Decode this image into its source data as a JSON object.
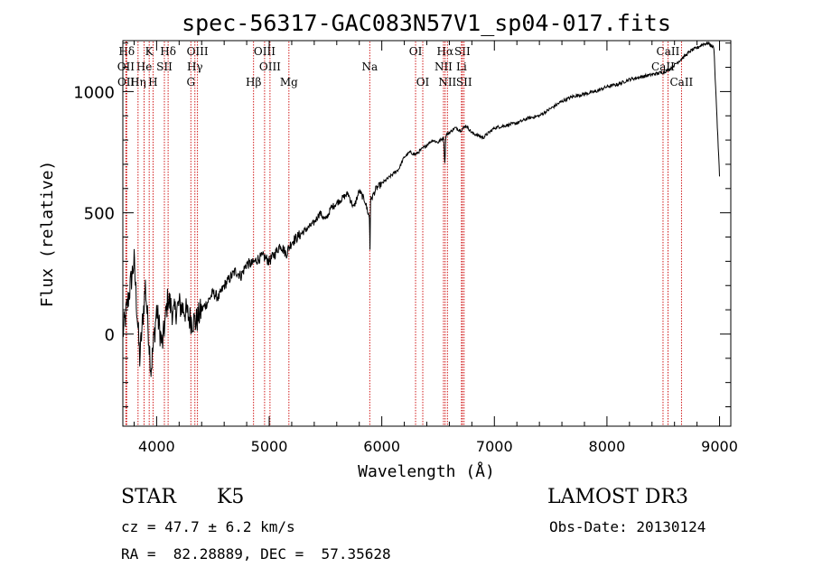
{
  "chart_data": {
    "type": "line",
    "title": "spec-56317-GAC083N57V1_sp04-017.fits",
    "xlabel": "Wavelength (Å)",
    "ylabel": "Flux (relative)",
    "xlim": [
      3700,
      9100
    ],
    "ylim": [
      -380,
      1210
    ],
    "x_ticks": [
      4000,
      5000,
      6000,
      7000,
      8000,
      9000
    ],
    "y_ticks": [
      0,
      500,
      1000
    ],
    "x_tick_labels": [
      "4000",
      "5000",
      "6000",
      "7000",
      "8000",
      "9000"
    ],
    "y_tick_labels": [
      "0",
      "500",
      "1000"
    ],
    "grid": false,
    "series": [
      {
        "name": "flux",
        "x": [
          3700,
          3750,
          3800,
          3850,
          3900,
          3950,
          4000,
          4050,
          4100,
          4150,
          4200,
          4250,
          4300,
          4350,
          4400,
          4450,
          4500,
          4550,
          4600,
          4650,
          4700,
          4750,
          4800,
          4850,
          4900,
          4950,
          5000,
          5050,
          5100,
          5150,
          5200,
          5250,
          5300,
          5350,
          5400,
          5450,
          5500,
          5550,
          5600,
          5650,
          5700,
          5750,
          5800,
          5850,
          5890,
          5895,
          5900,
          5950,
          6000,
          6050,
          6100,
          6150,
          6200,
          6250,
          6300,
          6350,
          6400,
          6450,
          6500,
          6550,
          6560,
          6565,
          6570,
          6600,
          6650,
          6700,
          6750,
          6800,
          6850,
          6900,
          6950,
          7000,
          7100,
          7200,
          7300,
          7400,
          7500,
          7600,
          7700,
          7800,
          7900,
          8000,
          8100,
          8200,
          8300,
          8400,
          8500,
          8550,
          8600,
          8650,
          8700,
          8750,
          8800,
          8850,
          8900,
          8950,
          9000
        ],
        "values": [
          0,
          150,
          300,
          -100,
          200,
          -150,
          100,
          -50,
          150,
          80,
          120,
          100,
          60,
          50,
          100,
          130,
          170,
          150,
          200,
          230,
          260,
          240,
          290,
          290,
          310,
          320,
          300,
          330,
          370,
          330,
          380,
          400,
          420,
          440,
          460,
          500,
          470,
          520,
          540,
          560,
          580,
          520,
          590,
          550,
          480,
          350,
          550,
          600,
          620,
          640,
          660,
          680,
          730,
          750,
          740,
          760,
          780,
          800,
          790,
          810,
          700,
          780,
          820,
          830,
          850,
          840,
          860,
          830,
          820,
          810,
          830,
          850,
          860,
          870,
          890,
          900,
          930,
          960,
          980,
          990,
          1000,
          1020,
          1030,
          1050,
          1060,
          1070,
          1080,
          1090,
          1110,
          1130,
          1150,
          1170,
          1180,
          1195,
          1200,
          1180,
          650
        ]
      }
    ],
    "line_markers": [
      {
        "label": "Hδ",
        "wavelength": 3734,
        "row": 1
      },
      {
        "label": "OII",
        "wavelength": 3727,
        "row": 2
      },
      {
        "label": "OII",
        "wavelength": 3729,
        "row": 3
      },
      {
        "label": "He",
        "wavelength": 3889,
        "row": 2
      },
      {
        "label": "Hη",
        "wavelength": 3835,
        "row": 3
      },
      {
        "label": "K",
        "wavelength": 3934,
        "row": 1
      },
      {
        "label": "SII",
        "wavelength": 4069,
        "row": 2
      },
      {
        "label": "H",
        "wavelength": 3968,
        "row": 3
      },
      {
        "label": "Hδ",
        "wavelength": 4102,
        "row": 1
      },
      {
        "label": "OIII",
        "wavelength": 4363,
        "row": 1
      },
      {
        "label": "Hγ",
        "wavelength": 4340,
        "row": 2
      },
      {
        "label": "G",
        "wavelength": 4304,
        "row": 3
      },
      {
        "label": "OIII",
        "wavelength": 4959,
        "row": 1
      },
      {
        "label": "OIII",
        "wavelength": 5007,
        "row": 2
      },
      {
        "label": "Hβ",
        "wavelength": 4861,
        "row": 3
      },
      {
        "label": "Mg",
        "wavelength": 5175,
        "row": 3
      },
      {
        "label": "Na",
        "wavelength": 5893,
        "row": 2
      },
      {
        "label": "OI",
        "wavelength": 6300,
        "row": 1
      },
      {
        "label": "OI",
        "wavelength": 6364,
        "row": 3
      },
      {
        "label": "Hα",
        "wavelength": 6563,
        "row": 1
      },
      {
        "label": "SII",
        "wavelength": 6716,
        "row": 1
      },
      {
        "label": "NII",
        "wavelength": 6548,
        "row": 2
      },
      {
        "label": "Li",
        "wavelength": 6708,
        "row": 2
      },
      {
        "label": "NII",
        "wavelength": 6583,
        "row": 3
      },
      {
        "label": "SII",
        "wavelength": 6731,
        "row": 3
      },
      {
        "label": "CaII",
        "wavelength": 8542,
        "row": 1
      },
      {
        "label": "CaII",
        "wavelength": 8498,
        "row": 2
      },
      {
        "label": "CaII",
        "wavelength": 8662,
        "row": 3
      }
    ]
  },
  "info": {
    "object_class": "STAR",
    "subclass": "K5",
    "survey": "LAMOST DR3",
    "redshift": "cz = 47.7 ± 6.2 km/s",
    "obs_date": "Obs-Date: 20130124",
    "coords": "RA =  82.28889, DEC =  57.35628"
  },
  "colors": {
    "spectrum": "#000000",
    "axes": "#000000",
    "line_markers": "#cc0000"
  }
}
